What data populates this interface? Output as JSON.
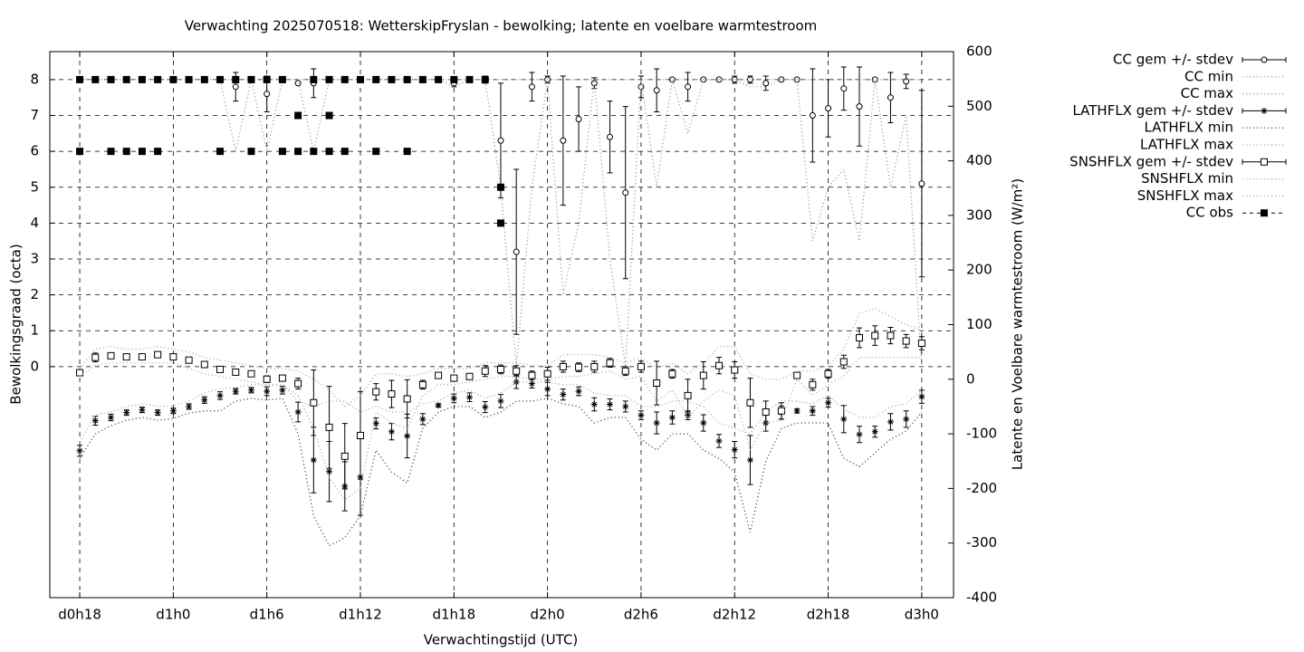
{
  "chart_data": {
    "type": "errorbars",
    "title": "Verwachting 2025070518: WetterskipFryslan - bewolking; latente en voelbare warmtestroom",
    "x_label": "Verwachtingstijd (UTC)",
    "y_label": "Bewolkingsgraad (octa)",
    "y2_label": "Latente en Voelbare warmtestroom (W/m²)",
    "xlim": [
      16.08,
      74.04
    ],
    "xticks": [
      {
        "value": 18,
        "label": "d0h18"
      },
      {
        "value": 24,
        "label": "d1h0"
      },
      {
        "value": 30,
        "label": "d1h6"
      },
      {
        "value": 36,
        "label": "d1h12"
      },
      {
        "value": 42,
        "label": "d1h18"
      },
      {
        "value": 48,
        "label": "d2h0"
      },
      {
        "value": 54,
        "label": "d2h6"
      },
      {
        "value": 60,
        "label": "d2h12"
      },
      {
        "value": 66,
        "label": "d2h18"
      },
      {
        "value": 72,
        "label": "d3h0"
      }
    ],
    "ylim": [
      -6.44,
      8.78
    ],
    "yticks": [
      0,
      1,
      2,
      3,
      4,
      5,
      6,
      7,
      8
    ],
    "y2lim": [
      -400,
      600
    ],
    "y2ticks": [
      -400,
      -300,
      -200,
      -100,
      0,
      100,
      200,
      300,
      400,
      500,
      600
    ],
    "grid": true,
    "legend": "top-right-outside",
    "x": [
      18,
      19,
      20,
      21,
      22,
      23,
      24,
      25,
      26,
      27,
      28,
      29,
      30,
      31,
      32,
      33,
      34,
      35,
      36,
      37,
      38,
      39,
      40,
      41,
      42,
      43,
      44,
      45,
      46,
      47,
      48,
      49,
      50,
      51,
      52,
      53,
      54,
      55,
      56,
      57,
      58,
      59,
      60,
      61,
      62,
      63,
      64,
      65,
      66,
      67,
      68,
      69,
      70,
      71,
      72
    ],
    "series": [
      {
        "name": "CC gem +/- stdev",
        "color": "#000000",
        "axis": "y",
        "style": "errorbars",
        "marker": "circle",
        "values": [
          8,
          8,
          8,
          8,
          8,
          8,
          8,
          8,
          8,
          8,
          7.8,
          8,
          7.6,
          8,
          7.9,
          7.9,
          8,
          8,
          8,
          8,
          8,
          8,
          8,
          8,
          7.9,
          8,
          8,
          6.3,
          3.2,
          7.8,
          8,
          6.3,
          6.9,
          7.9,
          6.4,
          4.85,
          7.8,
          7.7,
          8,
          7.8,
          8,
          8,
          8,
          8,
          7.9,
          8,
          8,
          7,
          7.2,
          7.75,
          7.25,
          8,
          7.5,
          7.95,
          5.1
        ],
        "errors": [
          0,
          0,
          0,
          0,
          0,
          0,
          0,
          0,
          0,
          0,
          0.4,
          0,
          0.5,
          0,
          0,
          0.4,
          0,
          0,
          0,
          0,
          0,
          0,
          0,
          0,
          0.1,
          0,
          0.1,
          1.6,
          2.3,
          0.4,
          0.1,
          1.8,
          0.9,
          0.15,
          1.0,
          2.4,
          0.3,
          0.6,
          0,
          0.4,
          0,
          0,
          0.1,
          0.1,
          0.2,
          0,
          0,
          1.3,
          0.8,
          0.6,
          1.1,
          0,
          0.7,
          0.2,
          2.6
        ]
      },
      {
        "name": "CC min",
        "color": "#999999",
        "axis": "y",
        "style": "dotted",
        "values": [
          8,
          8,
          8,
          8,
          8,
          8,
          8,
          8,
          8,
          8,
          6,
          8,
          6,
          8,
          8,
          6,
          8,
          8,
          8,
          8,
          8,
          8,
          8,
          8,
          7.8,
          8,
          8,
          5,
          0,
          5,
          8,
          2,
          4,
          8,
          3,
          0,
          8,
          5,
          8,
          6.5,
          8,
          8,
          8,
          7.8,
          7.8,
          8,
          8,
          3.5,
          5,
          5.5,
          3.5,
          8,
          5,
          7,
          0
        ]
      },
      {
        "name": "CC max",
        "color": "#999999",
        "axis": "y",
        "style": "dotted",
        "values": [
          8,
          8,
          8,
          8,
          8,
          8,
          8,
          8,
          8,
          8,
          8,
          8,
          8,
          8,
          8,
          8,
          8,
          8,
          8,
          8,
          8,
          8,
          8,
          8,
          8,
          8,
          8,
          8,
          8,
          8,
          8,
          8,
          8,
          8,
          8,
          8,
          8,
          8,
          8,
          8,
          8,
          8,
          8,
          8,
          8,
          8,
          8,
          8,
          8,
          8,
          8,
          8,
          8,
          8,
          8
        ]
      },
      {
        "name": "LATHFLX gem +/- stdev",
        "color": "#000000",
        "axis": "y2",
        "style": "errorbars",
        "marker": "star",
        "values": [
          -131,
          -76,
          -70,
          -61,
          -56,
          -61,
          -58,
          -50,
          -38,
          -30,
          -22,
          -20,
          -22,
          -20,
          -60,
          -148,
          -169,
          -196,
          -179,
          -81,
          -96,
          -104,
          -73,
          -48,
          -35,
          -33,
          -51,
          -40,
          -5,
          -8,
          -18,
          -28,
          -22,
          -46,
          -46,
          -50,
          -66,
          -80,
          -70,
          -66,
          -80,
          -113,
          -129,
          -148,
          -80,
          -61,
          -58,
          -58,
          -43,
          -73,
          -101,
          -96,
          -78,
          -73,
          -32
        ],
        "errors": [
          10,
          8,
          6,
          5,
          5,
          5,
          5,
          5,
          6,
          7,
          5,
          5,
          8,
          7,
          18,
          60,
          55,
          45,
          70,
          10,
          15,
          40,
          10,
          3,
          8,
          8,
          10,
          12,
          12,
          8,
          12,
          10,
          8,
          12,
          10,
          10,
          8,
          20,
          12,
          8,
          15,
          12,
          15,
          45,
          15,
          12,
          4,
          8,
          8,
          25,
          15,
          10,
          15,
          15,
          12
        ]
      },
      {
        "name": "LATHFLX min",
        "color": "#444444",
        "axis": "y2",
        "style": "dotted",
        "values": [
          -145,
          -100,
          -85,
          -75,
          -70,
          -75,
          -72,
          -62,
          -58,
          -58,
          -40,
          -35,
          -38,
          -35,
          -100,
          -250,
          -305,
          -290,
          -250,
          -130,
          -170,
          -190,
          -90,
          -60,
          -50,
          -50,
          -70,
          -60,
          -40,
          -40,
          -35,
          -45,
          -50,
          -80,
          -70,
          -70,
          -110,
          -130,
          -100,
          -100,
          -130,
          -145,
          -170,
          -280,
          -150,
          -90,
          -80,
          -80,
          -80,
          -145,
          -160,
          -135,
          -110,
          -95,
          -60
        ]
      },
      {
        "name": "LATHFLX max",
        "color": "#aaaaaa",
        "axis": "y2",
        "style": "dotted",
        "values": [
          -115,
          -65,
          -60,
          -50,
          -45,
          -50,
          -48,
          -40,
          -25,
          -18,
          -15,
          -10,
          -12,
          -10,
          -40,
          -50,
          -40,
          -40,
          -60,
          -50,
          -60,
          -60,
          -45,
          -40,
          -25,
          -20,
          -35,
          -25,
          -5,
          -5,
          -5,
          -10,
          -10,
          -25,
          -30,
          -30,
          -50,
          -50,
          -40,
          -40,
          -50,
          -80,
          -90,
          -100,
          -60,
          -40,
          -40,
          -45,
          -30,
          -55,
          -70,
          -70,
          -50,
          -45,
          -20
        ]
      },
      {
        "name": "SNSHFLX gem +/- stdev",
        "color": "#000000",
        "axis": "y2",
        "style": "errorbars",
        "marker": "square",
        "values": [
          12,
          40,
          43,
          41,
          41,
          45,
          41,
          35,
          27,
          18,
          13,
          10,
          0,
          2,
          -8,
          -43,
          -88,
          -141,
          -103,
          -23,
          -27,
          -36,
          -10,
          7,
          2,
          5,
          15,
          18,
          15,
          7,
          10,
          23,
          22,
          23,
          30,
          15,
          23,
          -7,
          10,
          -30,
          7,
          25,
          17,
          -43,
          -60,
          -58,
          7,
          -10,
          10,
          32,
          76,
          80,
          80,
          70,
          66
        ],
        "errors": [
          0,
          8,
          5,
          3,
          3,
          3,
          3,
          3,
          4,
          5,
          4,
          4,
          6,
          5,
          10,
          60,
          75,
          60,
          80,
          15,
          25,
          35,
          8,
          4,
          4,
          5,
          10,
          8,
          10,
          8,
          12,
          10,
          8,
          10,
          8,
          8,
          10,
          40,
          8,
          30,
          25,
          15,
          15,
          45,
          20,
          15,
          4,
          10,
          8,
          12,
          18,
          18,
          15,
          12,
          12
        ]
      },
      {
        "name": "SNSHFLX min",
        "color": "#aaaaaa",
        "axis": "y2",
        "style": "dotted",
        "values": [
          5,
          25,
          30,
          30,
          30,
          30,
          30,
          20,
          10,
          5,
          0,
          -5,
          -10,
          -10,
          -30,
          -90,
          -180,
          -220,
          -200,
          -60,
          -80,
          -90,
          -30,
          -10,
          -10,
          -5,
          0,
          5,
          5,
          0,
          0,
          5,
          5,
          10,
          15,
          0,
          5,
          -40,
          -20,
          -70,
          -40,
          -20,
          -30,
          -130,
          -80,
          -75,
          0,
          -30,
          -10,
          5,
          40,
          40,
          40,
          40,
          40
        ]
      },
      {
        "name": "SNSHFLX max",
        "color": "#aaaaaa",
        "axis": "y2",
        "style": "dotted",
        "values": [
          20,
          55,
          60,
          55,
          55,
          60,
          55,
          50,
          40,
          35,
          30,
          25,
          20,
          20,
          15,
          0,
          -20,
          -50,
          -30,
          10,
          10,
          5,
          10,
          20,
          20,
          20,
          30,
          30,
          30,
          25,
          25,
          45,
          45,
          45,
          40,
          30,
          40,
          20,
          30,
          10,
          30,
          60,
          60,
          10,
          0,
          0,
          15,
          15,
          25,
          55,
          120,
          130,
          115,
          100,
          90
        ]
      },
      {
        "name": "CC obs",
        "color": "#000000",
        "axis": "y",
        "style": "points",
        "marker": "filled-square",
        "x": [
          18,
          18,
          19,
          20,
          20,
          21,
          21,
          22,
          22,
          23,
          23,
          24,
          25,
          26,
          27,
          27,
          28,
          29,
          29,
          30,
          31,
          31,
          32,
          32,
          33,
          33,
          34,
          34,
          34,
          35,
          35,
          36,
          37,
          37,
          38,
          39,
          39,
          40,
          41,
          42,
          43,
          44,
          45,
          45
        ],
        "values": [
          8,
          6,
          8,
          8,
          6,
          8,
          6,
          8,
          6,
          8,
          6,
          8,
          8,
          8,
          8,
          6,
          8,
          8,
          6,
          8,
          8,
          6,
          7,
          6,
          8,
          6,
          8,
          7,
          6,
          8,
          6,
          8,
          8,
          6,
          8,
          8,
          6,
          8,
          8,
          8,
          8,
          8,
          5,
          4
        ]
      }
    ]
  }
}
